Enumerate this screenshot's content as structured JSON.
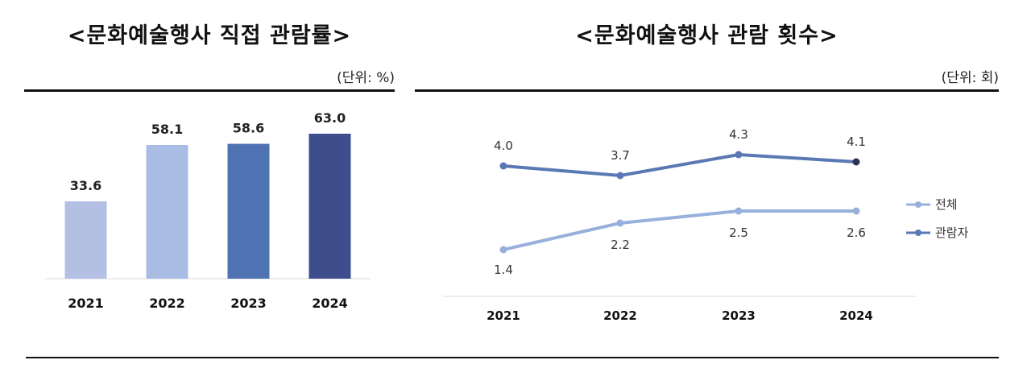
{
  "chart_data": [
    {
      "type": "bar",
      "title": "<문화예술행사 직접 관람률>",
      "unit": "(단위:  %)",
      "categories": [
        "2021",
        "2022",
        "2023",
        "2024"
      ],
      "values": [
        33.6,
        58.1,
        58.6,
        63.0
      ],
      "value_labels": [
        "33.6",
        "58.1",
        "58.6",
        "63.0"
      ],
      "bar_colors": [
        "#b4c0e3",
        "#a9bde4",
        "#4f72b3",
        "#3e4e8c"
      ],
      "ylim": [
        0,
        70
      ]
    },
    {
      "type": "line",
      "title": "<문화예술행사 관람 횟수>",
      "unit": "(단위:  회)",
      "categories": [
        "2021",
        "2022",
        "2023",
        "2024"
      ],
      "ylim": [
        0,
        5
      ],
      "legend_position": "right",
      "series": [
        {
          "name": "전체",
          "values": [
            1.4,
            2.2,
            2.5,
            2.6
          ],
          "value_labels": [
            "1.4",
            "2.2",
            "2.5",
            "2.6"
          ],
          "color": "#98b0dc"
        },
        {
          "name": "관람자",
          "values": [
            4.0,
            3.7,
            4.3,
            4.1
          ],
          "value_labels": [
            "4.0",
            "3.7",
            "4.3",
            "4.1"
          ],
          "color": "#5a78b4"
        }
      ]
    }
  ]
}
